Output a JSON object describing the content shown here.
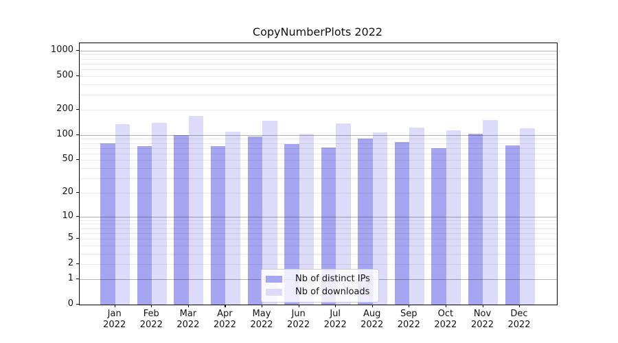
{
  "figure": {
    "background": "#ffffff"
  },
  "chart_data": {
    "type": "bar",
    "title": "CopyNumberPlots 2022",
    "x_categories": [
      "Jan",
      "Feb",
      "Mar",
      "Apr",
      "May",
      "Jun",
      "Jul",
      "Aug",
      "Sep",
      "Oct",
      "Nov",
      "Dec"
    ],
    "x_year": "2022",
    "series": [
      {
        "name": "Nb of distinct IPs",
        "color": "#a5a5f2",
        "values": [
          80,
          73,
          99,
          74,
          96,
          78,
          71,
          91,
          83,
          70,
          103,
          75
        ]
      },
      {
        "name": "Nb of downloads",
        "color": "#dcdcfa",
        "values": [
          135,
          139,
          170,
          109,
          148,
          104,
          136,
          108,
          122,
          113,
          151,
          120
        ]
      }
    ],
    "y_scale": "log1p",
    "ylim": [
      0,
      1224
    ],
    "y_tick_values": [
      0,
      1,
      2,
      5,
      10,
      20,
      50,
      100,
      200,
      500,
      1000
    ],
    "y_tick_labels": [
      "0",
      "1",
      "2",
      "5",
      "10",
      "20",
      "50",
      "100",
      "200",
      "500",
      "1000"
    ],
    "y_major_gridlines": [
      1,
      10,
      100,
      1000
    ],
    "y_minor_gridlines": [
      2,
      3,
      4,
      5,
      6,
      7,
      8,
      9,
      20,
      30,
      40,
      50,
      60,
      70,
      80,
      90,
      200,
      300,
      400,
      500,
      600,
      700,
      800,
      900
    ],
    "grid": "horizontal major+minor",
    "legend_position": "lower center",
    "colors": {
      "axis": "#000000",
      "text": "#111111",
      "major_grid": "rgba(0,0,0,0.30)",
      "minor_grid": "rgba(0,0,0,0.085)",
      "legend_border": "#cccccc",
      "legend_background": "rgba(255,255,255,0.8)"
    }
  }
}
